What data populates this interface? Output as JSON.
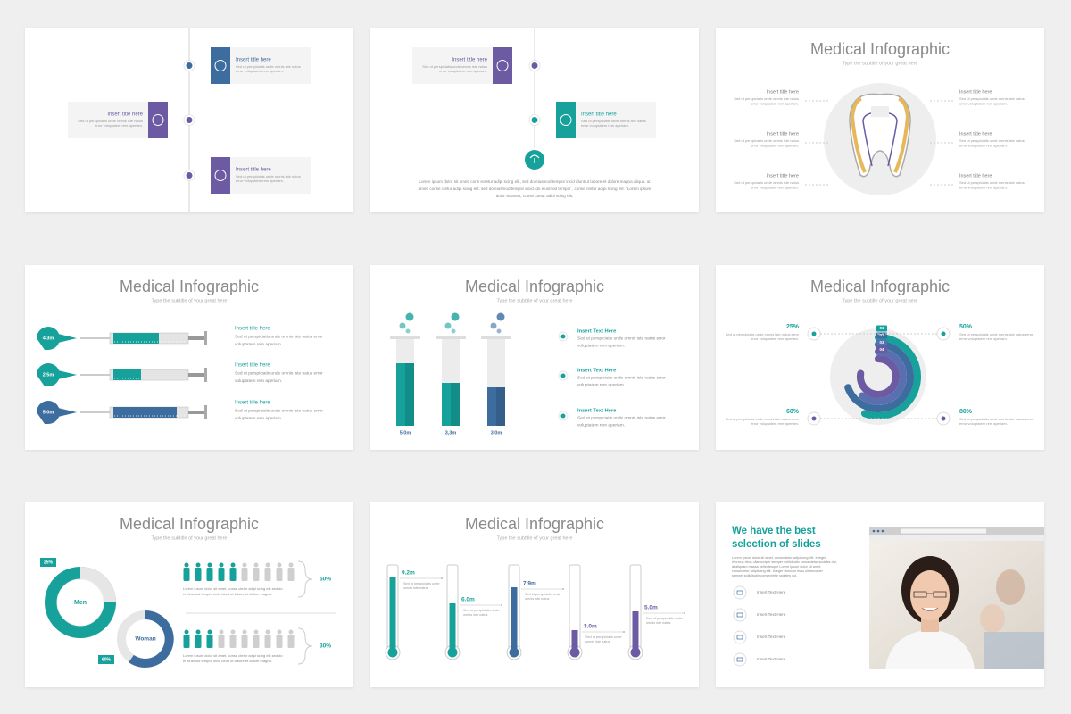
{
  "slides": [
    {
      "items": [
        {
          "title": "Insert title here",
          "body": [
            "Sed ut perspiciatis unde omnis iste natus",
            "error voluptatem rem aperiam."
          ]
        },
        {
          "title": "Insert title here",
          "body": [
            "Sed ut perspiciatis unde omnis iste natus",
            "error voluptatem rem aperiam."
          ]
        },
        {
          "title": "Insert title here",
          "body": [
            "Sed ut perspiciatis unde omnis iste natus",
            "error voluptatem rem aperiam."
          ]
        }
      ]
    },
    {
      "items": [
        {
          "title": "Insert title here",
          "body": [
            "Sed ut perspiciatis unde omnis iste natus",
            "error voluptatem rem aperiam."
          ]
        },
        {
          "title": "Insert title here",
          "body": [
            "Sed ut perspiciatis unde omnis iste natus",
            "error voluptatem rem aperiam."
          ]
        }
      ],
      "paragraph": [
        "Lorem ipsum dolor sit amet, cons ectetur adipi scing elit, sed do eiusmod tempor incid idunt ut labore et dolore magna aliqua. ut",
        "amet, conse ctetur adipi scing elit. sed do eiusmod tempor incid. do eiusmod tempor , conse ctetur adipi scing elit. \"Lorem ipsum",
        "dolor sit amet, conse ctetur adipi scing elit."
      ]
    },
    {
      "title": "Medical Infographic",
      "subtitle": "Type the subtitle of your great here",
      "items": [
        {
          "title": "Insert title here",
          "body": [
            "Sed ut perspiciatis unde omnis iste natus",
            "error voluptatem rem aperiam."
          ]
        },
        {
          "title": "Insert title here",
          "body": [
            "Sed ut perspiciatis unde omnis iste natus",
            "error voluptatem rem aperiam."
          ]
        },
        {
          "title": "Insert title here",
          "body": [
            "Sed ut perspiciatis unde omnis iste natus",
            "error voluptatem rem aperiam."
          ]
        },
        {
          "title": "Insert title here",
          "body": [
            "Sed ut perspiciatis unde omnis iste natus",
            "error voluptatem rem aperiam."
          ]
        },
        {
          "title": "Insert title here",
          "body": [
            "Sed ut perspiciatis unde omnis iste natus",
            "error voluptatem rem aperiam."
          ]
        },
        {
          "title": "Insert title here",
          "body": [
            "Sed ut perspiciatis unde omnis iste natus",
            "error voluptatem rem aperiam."
          ]
        }
      ]
    },
    {
      "title": "Medical Infographic",
      "subtitle": "Type the subtitle of your great here",
      "values": [
        "4,3m",
        "2,5m",
        "5,0m"
      ],
      "items": [
        {
          "title": "Insert title here",
          "body": [
            "Sed ut perspiciatis unde omnis iste natus error",
            "voluptatem rem aperiam."
          ]
        },
        {
          "title": "Insert title here",
          "body": [
            "Sed ut perspiciatis unde omnis iste natus error",
            "voluptatem rem aperiam."
          ]
        },
        {
          "title": "Insert title here",
          "body": [
            "Sed ut perspiciatis unde omnis iste natus error",
            "voluptatem rem aperiam."
          ]
        }
      ]
    },
    {
      "title": "Medical Infographic",
      "subtitle": "Type the subtitle of your great here",
      "values": [
        "5,0m",
        "3,3m",
        "3,0m"
      ],
      "items": [
        {
          "title": "Insert Text Here",
          "body": [
            "Sed ut perspiciatis unde omnis iste natus error",
            "voluptatem rem aperiam."
          ]
        },
        {
          "title": "Insert Text Here",
          "body": [
            "Sed ut perspiciatis unde omnis iste natus error",
            "voluptatem rem aperiam."
          ]
        },
        {
          "title": "Insert Text Here",
          "body": [
            "Sed ut perspiciatis unde omnis iste natus error",
            "voluptatem rem aperiam."
          ]
        }
      ]
    },
    {
      "title": "Medical Infographic",
      "subtitle": "Type the subtitle of your great here",
      "steps": [
        "01",
        "02",
        "03",
        "04"
      ],
      "items": [
        {
          "value": "25%",
          "body": [
            "Sed ut perspiciatis unde omnis iste natus error",
            "error voluptatem rem aperiam."
          ]
        },
        {
          "value": "50%",
          "body": [
            "Sed ut perspiciatis unde omnis iste natus error",
            "error voluptatem rem aperiam."
          ]
        },
        {
          "value": "60%",
          "body": [
            "Sed ut perspiciatis unde omnis iste natus error",
            "error voluptatem rem aperiam."
          ]
        },
        {
          "value": "80%",
          "body": [
            "Sed ut perspiciatis unde omnis iste natus error",
            "error voluptatem rem aperiam."
          ]
        }
      ]
    },
    {
      "title": "Medical Infographic",
      "subtitle": "Type the subtitle of your great here",
      "donuts": [
        {
          "label": "Men",
          "value": "25%"
        },
        {
          "label": "Woman",
          "value": "60%"
        }
      ],
      "rows": [
        {
          "value": "50%",
          "body": [
            "Lorem ipsum dolor sit amet, conse ctetur adipi scing elit sed do",
            "ei eiusmod tempor incid idunt ut labore et dolore magna."
          ]
        },
        {
          "value": "30%",
          "body": [
            "Lorem ipsum dolor sit amet, conse ctetur adipi scing elit sed do",
            "ei eiusmod tempor incid idunt ut labore et dolore magna."
          ]
        }
      ]
    },
    {
      "title": "Medical Infographic",
      "subtitle": "Type the subtitle of your great here",
      "items": [
        {
          "value": "9.2m",
          "body": [
            "Sed ut perspiciatis unde",
            "omnis iste natus"
          ]
        },
        {
          "value": "6.0m",
          "body": [
            "Sed ut perspiciatis unde",
            "omnis iste natus"
          ]
        },
        {
          "value": "7.9m",
          "body": [
            "Sed ut perspiciatis unde",
            "omnis iste natus"
          ]
        },
        {
          "value": "3.0m",
          "body": [
            "Sed ut perspiciatis unde",
            "omnis iste natus"
          ]
        },
        {
          "value": "5.0m",
          "body": [
            "Sed ut perspiciatis unde",
            "omnis iste natus"
          ]
        }
      ]
    },
    {
      "heading": [
        "We have the best",
        "selection of slides"
      ],
      "paragraph": [
        "Lorem ipsum dolor sit amet, consectetur adipiscing elit. Integer",
        "rhoncus risus ullamcorper semper sollicitudin consectetur sodales dui,",
        "at aliquam massa pellentesque Lorem ipsum dolor sit amet,",
        "consectetur adipiscing elit. Integer rhoncus risus ullamcorper",
        "semper sollicitudin consectetur sodales dui."
      ],
      "items": [
        "Insert Text Here",
        "Insert Text Here",
        "Insert Text Here",
        "Insert Text Here"
      ]
    }
  ]
}
